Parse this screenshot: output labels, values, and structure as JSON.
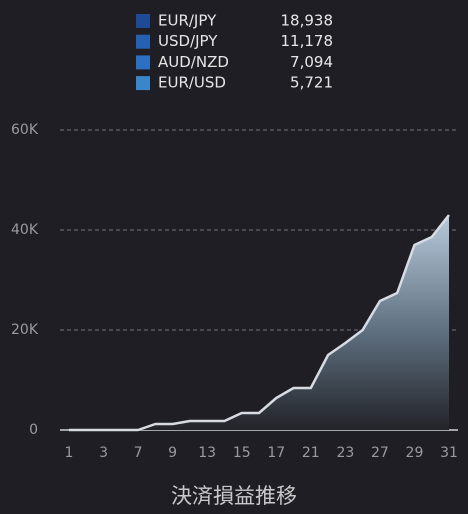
{
  "chart_data": {
    "type": "area",
    "title": "決済損益推移",
    "legend_items": {
      "names": [
        "EUR/JPY",
        "USD/JPY",
        "AUD/NZD",
        "EUR/USD"
      ],
      "colors": [
        "#1e4a96",
        "#2660b2",
        "#2d6fc2",
        "#3a86c8"
      ],
      "values": [
        18938,
        11178,
        7094,
        5721
      ],
      "value_labels": [
        "18,938",
        "11,178",
        "7,094",
        "5,721"
      ]
    },
    "categories": [
      "1",
      null,
      "3",
      null,
      "7",
      null,
      "9",
      null,
      "13",
      null,
      "15",
      null,
      "17",
      null,
      "21",
      null,
      "23",
      null,
      "27",
      null,
      "29",
      null,
      "31"
    ],
    "values": [
      0,
      0,
      0,
      0,
      0,
      1200,
      1200,
      1800,
      1800,
      1800,
      3400,
      3400,
      6400,
      8400,
      8400,
      15000,
      17400,
      20000,
      25800,
      27400,
      37000,
      38600,
      43000
    ],
    "color": "#d8dce2",
    "ylim": [
      0,
      60000
    ],
    "yticks": [
      0,
      {
        "value": 20000,
        "label": "20K"
      },
      {
        "value": 40000,
        "label": "40K"
      },
      {
        "value": 60000,
        "label": "60K"
      }
    ],
    "grid": true
  }
}
